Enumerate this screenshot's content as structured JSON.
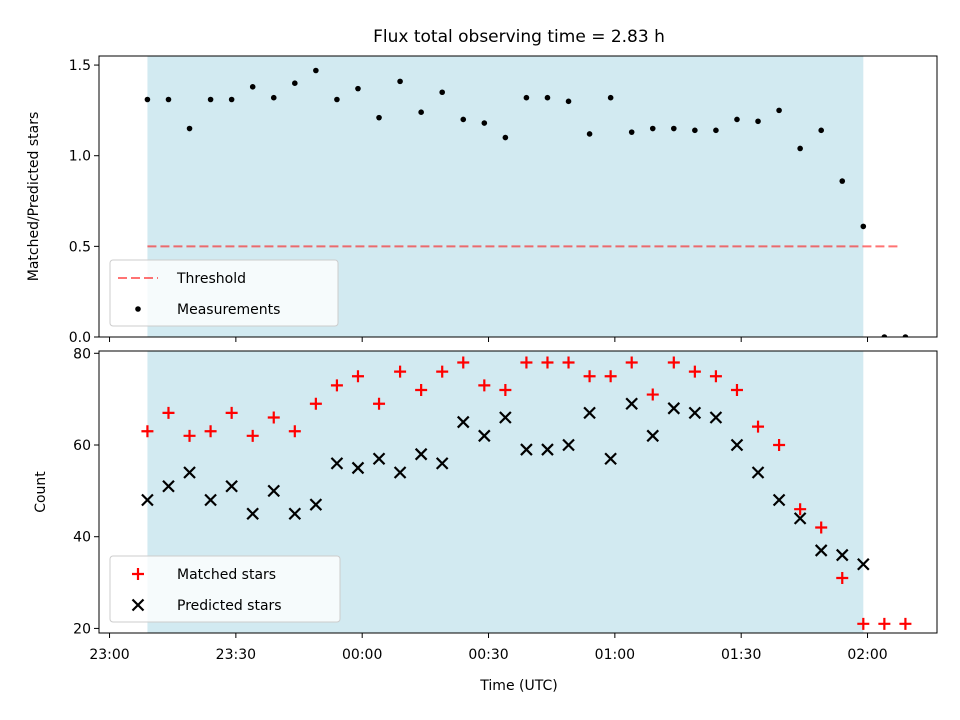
{
  "title": "Flux total observing time = 2.83 h",
  "x_axis": {
    "label": "Time (UTC)",
    "tick_labels": [
      "23:00",
      "23:30",
      "00:00",
      "00:30",
      "01:00",
      "01:30",
      "02:00"
    ],
    "tick_minutes": [
      0,
      30,
      60,
      90,
      120,
      150,
      180
    ],
    "range_minutes": [
      -2.5,
      196.5
    ],
    "reference_time": "23:00"
  },
  "colors": {
    "shade": "#add8e6",
    "threshold": "#ff0000",
    "measurements": "#000000",
    "matched": "#ff0000",
    "predicted": "#000000"
  },
  "chart_data": [
    {
      "type": "scatter",
      "ylabel": "Matched/Predicted stars",
      "ylim": [
        0.0,
        1.55
      ],
      "yticks": [
        0.0,
        0.5,
        1.0,
        1.5
      ],
      "ytick_labels": [
        "0.0",
        "0.5",
        "1.0",
        "1.5"
      ],
      "shaded_span": [
        "23:09",
        "01:59"
      ],
      "legend_position": "lower-left",
      "series": [
        {
          "name": "Threshold",
          "kind": "dashed-line",
          "x": [
            "23:09",
            "02:08"
          ],
          "y": [
            0.5,
            0.5
          ]
        },
        {
          "name": "Measurements",
          "kind": "dot",
          "x": [
            "23:09",
            "23:14",
            "23:19",
            "23:24",
            "23:29",
            "23:34",
            "23:39",
            "23:44",
            "23:49",
            "23:54",
            "23:59",
            "00:04",
            "00:09",
            "00:14",
            "00:19",
            "00:24",
            "00:29",
            "00:34",
            "00:39",
            "00:44",
            "00:49",
            "00:54",
            "00:59",
            "01:04",
            "01:09",
            "01:14",
            "01:19",
            "01:24",
            "01:29",
            "01:34",
            "01:39",
            "01:44",
            "01:49",
            "01:54",
            "01:59",
            "02:04",
            "02:09"
          ],
          "y": [
            1.31,
            1.31,
            1.15,
            1.31,
            1.31,
            1.38,
            1.32,
            1.4,
            1.47,
            1.31,
            1.37,
            1.21,
            1.41,
            1.24,
            1.35,
            1.2,
            1.18,
            1.1,
            1.32,
            1.32,
            1.3,
            1.12,
            1.32,
            1.13,
            1.15,
            1.15,
            1.14,
            1.14,
            1.2,
            1.19,
            1.25,
            1.04,
            1.14,
            0.86,
            0.61,
            0.0,
            0.0
          ]
        }
      ]
    },
    {
      "type": "scatter",
      "ylabel": "Count",
      "ylim": [
        19,
        80.5
      ],
      "yticks": [
        20,
        40,
        60,
        80
      ],
      "ytick_labels": [
        "20",
        "40",
        "60",
        "80"
      ],
      "shaded_span": [
        "23:09",
        "01:59"
      ],
      "legend_position": "lower-left",
      "series": [
        {
          "name": "Matched stars",
          "kind": "plus",
          "x": [
            "23:09",
            "23:14",
            "23:19",
            "23:24",
            "23:29",
            "23:34",
            "23:39",
            "23:44",
            "23:49",
            "23:54",
            "23:59",
            "00:04",
            "00:09",
            "00:14",
            "00:19",
            "00:24",
            "00:29",
            "00:34",
            "00:39",
            "00:44",
            "00:49",
            "00:54",
            "00:59",
            "01:04",
            "01:09",
            "01:14",
            "01:19",
            "01:24",
            "01:29",
            "01:34",
            "01:39",
            "01:44",
            "01:49",
            "01:54",
            "01:59",
            "02:04",
            "02:09"
          ],
          "y": [
            63,
            67,
            62,
            63,
            67,
            62,
            66,
            63,
            69,
            73,
            75,
            69,
            76,
            72,
            76,
            78,
            73,
            72,
            78,
            78,
            78,
            75,
            75,
            78,
            71,
            78,
            76,
            75,
            72,
            64,
            60,
            46,
            42,
            31,
            21,
            21,
            21
          ]
        },
        {
          "name": "Predicted stars",
          "kind": "x",
          "x": [
            "23:09",
            "23:14",
            "23:19",
            "23:24",
            "23:29",
            "23:34",
            "23:39",
            "23:44",
            "23:49",
            "23:54",
            "23:59",
            "00:04",
            "00:09",
            "00:14",
            "00:19",
            "00:24",
            "00:29",
            "00:34",
            "00:39",
            "00:44",
            "00:49",
            "00:54",
            "00:59",
            "01:04",
            "01:09",
            "01:14",
            "01:19",
            "01:24",
            "01:29",
            "01:34",
            "01:39",
            "01:44",
            "01:49",
            "01:54",
            "01:59"
          ],
          "y": [
            48,
            51,
            54,
            48,
            51,
            45,
            50,
            45,
            47,
            56,
            55,
            57,
            54,
            58,
            56,
            65,
            62,
            66,
            59,
            59,
            60,
            67,
            57,
            69,
            62,
            68,
            67,
            66,
            60,
            54,
            48,
            44,
            37,
            36,
            34
          ]
        }
      ]
    }
  ]
}
